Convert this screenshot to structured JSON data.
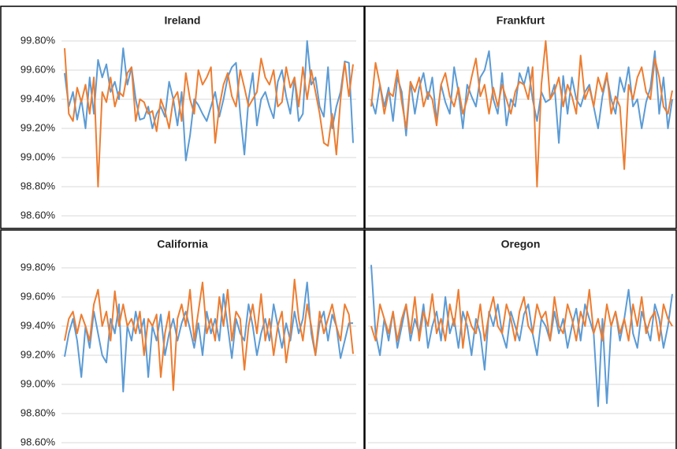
{
  "chart_data": [
    {
      "type": "line",
      "title": "Ireland",
      "ylim": [
        98.51,
        99.85
      ],
      "grid": true,
      "yticks": [
        {
          "value": 98.6,
          "label": "98.60%"
        },
        {
          "value": 98.8,
          "label": "98.80%"
        },
        {
          "value": 99.0,
          "label": "99.00%"
        },
        {
          "value": 99.2,
          "label": "99.20%"
        },
        {
          "value": 99.4,
          "label": "99.40%"
        },
        {
          "value": 99.6,
          "label": "99.60%"
        },
        {
          "value": 99.8,
          "label": "99.80%"
        }
      ],
      "series": [
        {
          "color": "#5b9bd5",
          "values": [
            99.58,
            99.35,
            99.45,
            99.26,
            99.4,
            99.2,
            99.55,
            99.3,
            99.67,
            99.55,
            99.64,
            99.45,
            99.52,
            99.4,
            99.75,
            99.5,
            99.62,
            99.4,
            99.26,
            99.27,
            99.35,
            99.2,
            99.3,
            99.35,
            99.28,
            99.52,
            99.4,
            99.22,
            99.45,
            98.98,
            99.15,
            99.4,
            99.36,
            99.3,
            99.25,
            99.35,
            99.45,
            99.28,
            99.4,
            99.55,
            99.62,
            99.65,
            99.3,
            99.02,
            99.4,
            99.58,
            99.22,
            99.4,
            99.45,
            99.35,
            99.27,
            99.52,
            99.6,
            99.42,
            99.3,
            99.55,
            99.25,
            99.3,
            99.8,
            99.5,
            99.55,
            99.35,
            99.28,
            99.62,
            99.2,
            99.35,
            99.45,
            99.66,
            99.65,
            99.1
          ]
        },
        {
          "color": "#ed7d31",
          "values": [
            99.75,
            99.3,
            99.25,
            99.48,
            99.38,
            99.5,
            99.3,
            99.55,
            98.8,
            99.45,
            99.38,
            99.55,
            99.35,
            99.45,
            99.42,
            99.58,
            99.62,
            99.25,
            99.4,
            99.38,
            99.3,
            99.32,
            99.18,
            99.4,
            99.32,
            99.2,
            99.4,
            99.45,
            99.25,
            99.58,
            99.4,
            99.3,
            99.6,
            99.5,
            99.55,
            99.62,
            99.1,
            99.35,
            99.5,
            99.58,
            99.42,
            99.35,
            99.6,
            99.48,
            99.35,
            99.4,
            99.45,
            99.68,
            99.55,
            99.5,
            99.6,
            99.35,
            99.38,
            99.62,
            99.48,
            99.55,
            99.35,
            99.62,
            99.4,
            99.6,
            99.45,
            99.3,
            99.1,
            99.08,
            99.3,
            99.02,
            99.4,
            99.65,
            99.42,
            99.64
          ]
        }
      ]
    },
    {
      "type": "line",
      "title": "Frankfurt",
      "ylim": [
        98.51,
        99.85
      ],
      "grid": true,
      "ytick_labels": false,
      "yticks": [
        98.6,
        98.8,
        99.0,
        99.2,
        99.4,
        99.6,
        99.8
      ],
      "series": [
        {
          "color": "#5b9bd5",
          "values": [
            99.4,
            99.3,
            99.5,
            99.35,
            99.48,
            99.25,
            99.55,
            99.45,
            99.15,
            99.52,
            99.3,
            99.48,
            99.58,
            99.4,
            99.55,
            99.25,
            99.5,
            99.38,
            99.3,
            99.62,
            99.45,
            99.2,
            99.5,
            99.42,
            99.35,
            99.55,
            99.6,
            99.73,
            99.4,
            99.3,
            99.58,
            99.22,
            99.4,
            99.35,
            99.58,
            99.5,
            99.62,
            99.4,
            99.25,
            99.45,
            99.38,
            99.4,
            99.5,
            99.1,
            99.56,
            99.3,
            99.55,
            99.4,
            99.35,
            99.45,
            99.5,
            99.35,
            99.2,
            99.42,
            99.56,
            99.4,
            99.3,
            99.55,
            99.45,
            99.62,
            99.35,
            99.4,
            99.2,
            99.38,
            99.48,
            99.73,
            99.3,
            99.55,
            99.2,
            99.4
          ]
        },
        {
          "color": "#ed7d31",
          "values": [
            99.35,
            99.65,
            99.5,
            99.3,
            99.45,
            99.42,
            99.6,
            99.38,
            99.2,
            99.52,
            99.45,
            99.55,
            99.35,
            99.45,
            99.4,
            99.22,
            99.5,
            99.58,
            99.42,
            99.35,
            99.48,
            99.3,
            99.4,
            99.55,
            99.68,
            99.42,
            99.5,
            99.3,
            99.48,
            99.35,
            99.5,
            99.4,
            99.3,
            99.45,
            99.52,
            99.5,
            99.4,
            99.62,
            98.8,
            99.5,
            99.8,
            99.4,
            99.45,
            99.55,
            99.35,
            99.5,
            99.42,
            99.3,
            99.7,
            99.4,
            99.48,
            99.35,
            99.55,
            99.45,
            99.58,
            99.3,
            99.42,
            99.35,
            98.92,
            99.5,
            99.4,
            99.55,
            99.62,
            99.45,
            99.4,
            99.68,
            99.55,
            99.35,
            99.3,
            99.46
          ]
        }
      ]
    },
    {
      "type": "line",
      "title": "California",
      "ylim": [
        98.51,
        99.85
      ],
      "grid": true,
      "yticks": [
        {
          "value": 98.6,
          "label": "98.60%"
        },
        {
          "value": 98.8,
          "label": "98.80%"
        },
        {
          "value": 99.0,
          "label": "99.00%"
        },
        {
          "value": 99.2,
          "label": "99.20%"
        },
        {
          "value": 99.4,
          "label": "99.40%"
        },
        {
          "value": 99.6,
          "label": "99.60%"
        },
        {
          "value": 99.8,
          "label": "99.80%"
        }
      ],
      "series": [
        {
          "color": "#5b9bd5",
          "values": [
            99.19,
            99.35,
            99.45,
            99.3,
            99.05,
            99.4,
            99.25,
            99.5,
            99.35,
            99.2,
            99.15,
            99.45,
            99.35,
            99.55,
            98.95,
            99.4,
            99.3,
            99.5,
            99.35,
            99.45,
            99.05,
            99.4,
            99.3,
            99.48,
            99.2,
            99.35,
            99.45,
            99.3,
            99.42,
            99.5,
            99.38,
            99.25,
            99.42,
            99.2,
            99.5,
            99.35,
            99.45,
            99.3,
            99.62,
            99.4,
            99.18,
            99.45,
            99.35,
            99.3,
            99.55,
            99.4,
            99.2,
            99.35,
            99.45,
            99.3,
            99.55,
            99.4,
            99.25,
            99.42,
            99.3,
            99.5,
            99.35,
            99.45,
            99.7,
            99.35,
            99.2,
            99.42,
            99.5,
            99.3,
            99.48,
            99.4,
            99.18,
            99.3,
            99.42,
            99.42
          ]
        },
        {
          "color": "#ed7d31",
          "values": [
            99.3,
            99.45,
            99.5,
            99.35,
            99.48,
            99.4,
            99.3,
            99.55,
            99.65,
            99.4,
            99.5,
            99.3,
            99.64,
            99.4,
            99.55,
            99.4,
            99.45,
            99.35,
            99.5,
            99.2,
            99.45,
            99.4,
            99.48,
            99.05,
            99.35,
            99.5,
            98.96,
            99.45,
            99.55,
            99.4,
            99.65,
            99.3,
            99.5,
            99.7,
            99.35,
            99.45,
            99.3,
            99.6,
            99.4,
            99.65,
            99.3,
            99.5,
            99.45,
            99.1,
            99.4,
            99.55,
            99.35,
            99.62,
            99.3,
            99.45,
            99.2,
            99.4,
            99.5,
            99.15,
            99.35,
            99.72,
            99.45,
            99.3,
            99.55,
            99.4,
            99.2,
            99.5,
            99.35,
            99.45,
            99.55,
            99.4,
            99.3,
            99.55,
            99.48,
            99.21
          ]
        }
      ]
    },
    {
      "type": "line",
      "title": "Oregon",
      "ylim": [
        98.51,
        99.85
      ],
      "grid": true,
      "ytick_labels": false,
      "yticks": [
        98.6,
        98.8,
        99.0,
        99.2,
        99.4,
        99.6,
        99.8
      ],
      "series": [
        {
          "color": "#5b9bd5",
          "values": [
            99.82,
            99.35,
            99.2,
            99.45,
            99.3,
            99.5,
            99.25,
            99.4,
            99.55,
            99.3,
            99.45,
            99.35,
            99.55,
            99.25,
            99.4,
            99.5,
            99.3,
            99.6,
            99.35,
            99.45,
            99.25,
            99.5,
            99.4,
            99.2,
            99.45,
            99.35,
            99.1,
            99.5,
            99.4,
            99.55,
            99.35,
            99.25,
            99.5,
            99.4,
            99.3,
            99.48,
            99.55,
            99.35,
            99.2,
            99.45,
            99.4,
            99.3,
            99.5,
            99.35,
            99.45,
            99.25,
            99.4,
            99.52,
            99.3,
            99.55,
            99.45,
            99.35,
            98.85,
            99.45,
            98.87,
            99.4,
            99.5,
            99.3,
            99.45,
            99.65,
            99.35,
            99.25,
            99.5,
            99.4,
            99.3,
            99.55,
            99.45,
            99.25,
            99.4,
            99.62
          ]
        },
        {
          "color": "#ed7d31",
          "values": [
            99.4,
            99.3,
            99.55,
            99.45,
            99.35,
            99.5,
            99.3,
            99.45,
            99.55,
            99.35,
            99.6,
            99.3,
            99.5,
            99.4,
            99.62,
            99.35,
            99.45,
            99.3,
            99.55,
            99.4,
            99.65,
            99.25,
            99.5,
            99.4,
            99.35,
            99.55,
            99.3,
            99.48,
            99.6,
            99.4,
            99.35,
            99.55,
            99.45,
            99.3,
            99.5,
            99.6,
            99.4,
            99.35,
            99.55,
            99.45,
            99.5,
            99.3,
            99.6,
            99.4,
            99.35,
            99.55,
            99.45,
            99.3,
            99.5,
            99.4,
            99.65,
            99.35,
            99.45,
            99.3,
            99.55,
            99.4,
            99.5,
            99.35,
            99.45,
            99.3,
            99.55,
            99.4,
            99.6,
            99.35,
            99.45,
            99.5,
            99.3,
            99.55,
            99.45,
            99.4
          ]
        }
      ]
    }
  ]
}
